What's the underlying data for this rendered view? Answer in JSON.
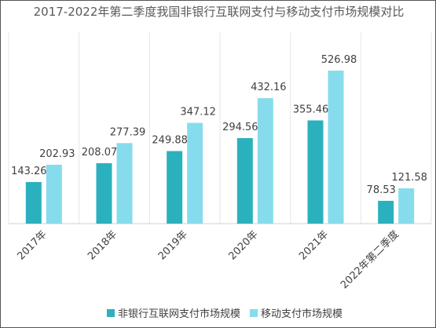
{
  "chart_data": {
    "type": "bar",
    "title": "2017-2022年第二季度我国非银行互联网支付与移动支付市场规模对比",
    "categories": [
      "2017年",
      "2018年",
      "2019年",
      "2020年",
      "2021年",
      "2022年第二季度"
    ],
    "series": [
      {
        "name": "非银行互联网支付市场规模",
        "color": "#2bb1bd",
        "values": [
          143.26,
          208.07,
          249.88,
          294.56,
          355.46,
          78.53
        ]
      },
      {
        "name": "移动支付市场规模",
        "color": "#86dcec",
        "values": [
          202.93,
          277.39,
          347.12,
          432.16,
          526.98,
          121.58
        ]
      }
    ],
    "grid": true,
    "legend": "bottom"
  }
}
